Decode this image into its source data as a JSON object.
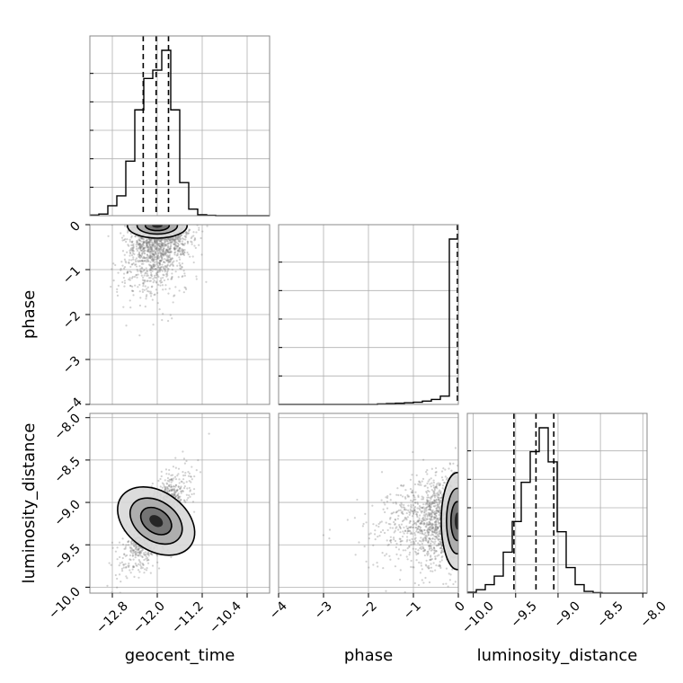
{
  "chart_data": {
    "type": "corner",
    "parameters": [
      "geocent_time",
      "phase",
      "luminosity_distance"
    ],
    "ranges": {
      "geocent_time": [
        -13.2,
        -10.0
      ],
      "phase": [
        -4.0,
        0.0
      ],
      "luminosity_distance": [
        -10.07,
        -7.95
      ]
    },
    "ticks": {
      "geocent_time": [
        -12.8,
        -12.0,
        -11.2,
        -10.4
      ],
      "phase": [
        -4,
        -3,
        -2,
        -1,
        0
      ],
      "luminosity_distance": [
        -10.0,
        -9.5,
        -9.0,
        -8.5,
        -8.0
      ]
    },
    "tick_labels": {
      "geocent_time": [
        "−12.8",
        "−12.0",
        "−11.2",
        "−10.4"
      ],
      "phase": [
        "−4",
        "−3",
        "−2",
        "−1",
        "0"
      ],
      "luminosity_distance": [
        "−10.0",
        "−9.5",
        "−9.0",
        "−8.5",
        "−8.0"
      ]
    },
    "axis_labels": {
      "geocent_time": "geocent_time",
      "phase": "phase",
      "luminosity_distance": "luminosity_distance"
    },
    "quantiles": {
      "geocent_time": [
        -12.25,
        -12.02,
        -11.8
      ],
      "phase": [
        -0.02
      ],
      "luminosity_distance": [
        -9.52,
        -9.26,
        -9.05
      ]
    },
    "histograms": {
      "geocent_time": {
        "bin_edges": [
          -13.2,
          -13.04,
          -12.88,
          -12.72,
          -12.56,
          -12.4,
          -12.24,
          -12.08,
          -11.92,
          -11.76,
          -11.6,
          -11.44,
          -11.28,
          -11.12,
          -10.96,
          -10.8,
          -10.64,
          -10.48,
          -10.32,
          -10.16,
          -10.0
        ],
        "counts": [
          0.4,
          1,
          6,
          12,
          33,
          64,
          83,
          88,
          100,
          64,
          20,
          4,
          0.6,
          0.2,
          0,
          0,
          0,
          0,
          0,
          0
        ]
      },
      "phase": {
        "bin_edges": [
          -4.0,
          -3.8,
          -3.6,
          -3.4,
          -3.2,
          -3.0,
          -2.8,
          -2.6,
          -2.4,
          -2.2,
          -2.0,
          -1.8,
          -1.6,
          -1.4,
          -1.2,
          -1.0,
          -0.8,
          -0.6,
          -0.4,
          -0.2,
          0.0
        ],
        "counts": [
          0,
          0,
          0,
          0,
          0,
          0,
          0,
          0,
          0,
          0,
          0,
          0.3,
          0.5,
          0.7,
          1,
          1.3,
          2,
          3,
          5,
          100
        ]
      },
      "luminosity_distance": {
        "bin_edges": [
          -10.07,
          -9.964,
          -9.858,
          -9.752,
          -9.646,
          -9.54,
          -9.434,
          -9.328,
          -9.222,
          -9.116,
          -9.01,
          -8.904,
          -8.798,
          -8.692,
          -8.586,
          -8.48,
          -8.374,
          -8.268,
          -8.162,
          -8.056,
          -7.95
        ],
        "counts": [
          0.5,
          2,
          5,
          10,
          24,
          42,
          65,
          83,
          97,
          77,
          36,
          15,
          5,
          1,
          0.3,
          0,
          0,
          0,
          0,
          0
        ]
      }
    },
    "pair_stats": {
      "phase_vs_geocent_time": {
        "mean": [
          -12.0,
          -0.35
        ],
        "sd": [
          0.28,
          0.55
        ],
        "corr": 0.3
      },
      "luminosity_distance_vs_geocent_time": {
        "mean": [
          -12.02,
          -9.22
        ],
        "sd": [
          0.26,
          0.25
        ],
        "corr": 0.72
      },
      "luminosity_distance_vs_phase": {
        "mean": [
          -0.4,
          -9.22
        ],
        "sd": [
          0.5,
          0.26
        ],
        "corr": 0.15
      }
    },
    "grid": true
  }
}
